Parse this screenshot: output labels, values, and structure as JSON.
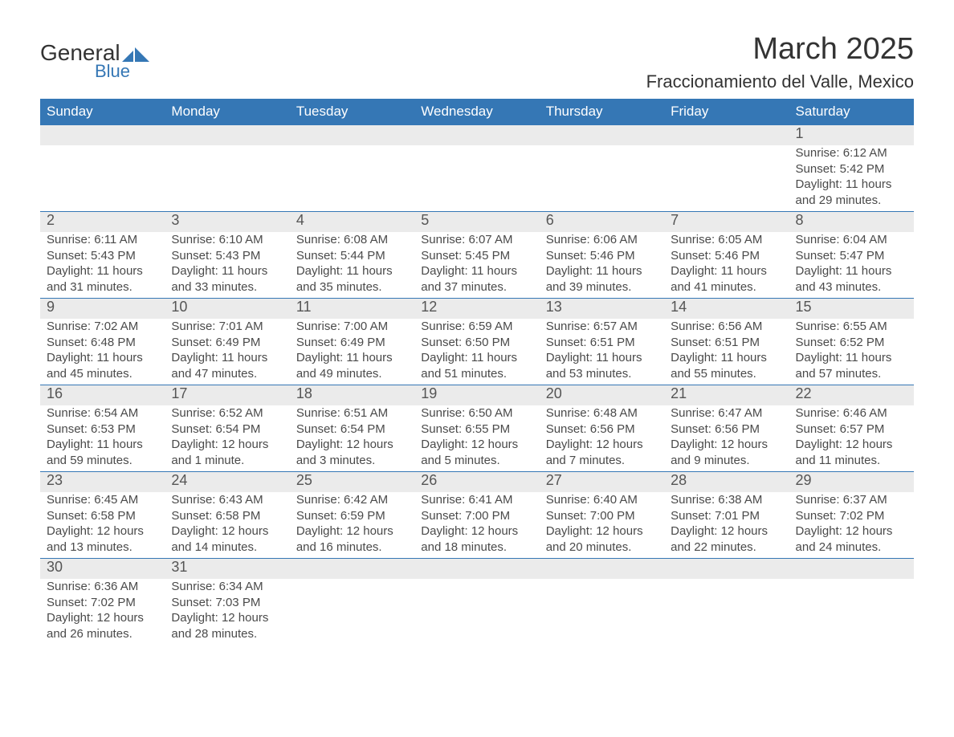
{
  "logo": {
    "general": "General",
    "blue": "Blue"
  },
  "title": "March 2025",
  "location": "Fraccionamiento del Valle, Mexico",
  "colors": {
    "header_bg": "#3577b5",
    "header_text": "#ffffff",
    "daynum_bg": "#ebebeb",
    "rule": "#3577b5",
    "body_text": "#4a4a4a"
  },
  "weekdays": [
    "Sunday",
    "Monday",
    "Tuesday",
    "Wednesday",
    "Thursday",
    "Friday",
    "Saturday"
  ],
  "weeks": [
    [
      null,
      null,
      null,
      null,
      null,
      null,
      {
        "n": "1",
        "sr": "Sunrise: 6:12 AM",
        "ss": "Sunset: 5:42 PM",
        "d1": "Daylight: 11 hours",
        "d2": "and 29 minutes."
      }
    ],
    [
      {
        "n": "2",
        "sr": "Sunrise: 6:11 AM",
        "ss": "Sunset: 5:43 PM",
        "d1": "Daylight: 11 hours",
        "d2": "and 31 minutes."
      },
      {
        "n": "3",
        "sr": "Sunrise: 6:10 AM",
        "ss": "Sunset: 5:43 PM",
        "d1": "Daylight: 11 hours",
        "d2": "and 33 minutes."
      },
      {
        "n": "4",
        "sr": "Sunrise: 6:08 AM",
        "ss": "Sunset: 5:44 PM",
        "d1": "Daylight: 11 hours",
        "d2": "and 35 minutes."
      },
      {
        "n": "5",
        "sr": "Sunrise: 6:07 AM",
        "ss": "Sunset: 5:45 PM",
        "d1": "Daylight: 11 hours",
        "d2": "and 37 minutes."
      },
      {
        "n": "6",
        "sr": "Sunrise: 6:06 AM",
        "ss": "Sunset: 5:46 PM",
        "d1": "Daylight: 11 hours",
        "d2": "and 39 minutes."
      },
      {
        "n": "7",
        "sr": "Sunrise: 6:05 AM",
        "ss": "Sunset: 5:46 PM",
        "d1": "Daylight: 11 hours",
        "d2": "and 41 minutes."
      },
      {
        "n": "8",
        "sr": "Sunrise: 6:04 AM",
        "ss": "Sunset: 5:47 PM",
        "d1": "Daylight: 11 hours",
        "d2": "and 43 minutes."
      }
    ],
    [
      {
        "n": "9",
        "sr": "Sunrise: 7:02 AM",
        "ss": "Sunset: 6:48 PM",
        "d1": "Daylight: 11 hours",
        "d2": "and 45 minutes."
      },
      {
        "n": "10",
        "sr": "Sunrise: 7:01 AM",
        "ss": "Sunset: 6:49 PM",
        "d1": "Daylight: 11 hours",
        "d2": "and 47 minutes."
      },
      {
        "n": "11",
        "sr": "Sunrise: 7:00 AM",
        "ss": "Sunset: 6:49 PM",
        "d1": "Daylight: 11 hours",
        "d2": "and 49 minutes."
      },
      {
        "n": "12",
        "sr": "Sunrise: 6:59 AM",
        "ss": "Sunset: 6:50 PM",
        "d1": "Daylight: 11 hours",
        "d2": "and 51 minutes."
      },
      {
        "n": "13",
        "sr": "Sunrise: 6:57 AM",
        "ss": "Sunset: 6:51 PM",
        "d1": "Daylight: 11 hours",
        "d2": "and 53 minutes."
      },
      {
        "n": "14",
        "sr": "Sunrise: 6:56 AM",
        "ss": "Sunset: 6:51 PM",
        "d1": "Daylight: 11 hours",
        "d2": "and 55 minutes."
      },
      {
        "n": "15",
        "sr": "Sunrise: 6:55 AM",
        "ss": "Sunset: 6:52 PM",
        "d1": "Daylight: 11 hours",
        "d2": "and 57 minutes."
      }
    ],
    [
      {
        "n": "16",
        "sr": "Sunrise: 6:54 AM",
        "ss": "Sunset: 6:53 PM",
        "d1": "Daylight: 11 hours",
        "d2": "and 59 minutes."
      },
      {
        "n": "17",
        "sr": "Sunrise: 6:52 AM",
        "ss": "Sunset: 6:54 PM",
        "d1": "Daylight: 12 hours",
        "d2": "and 1 minute."
      },
      {
        "n": "18",
        "sr": "Sunrise: 6:51 AM",
        "ss": "Sunset: 6:54 PM",
        "d1": "Daylight: 12 hours",
        "d2": "and 3 minutes."
      },
      {
        "n": "19",
        "sr": "Sunrise: 6:50 AM",
        "ss": "Sunset: 6:55 PM",
        "d1": "Daylight: 12 hours",
        "d2": "and 5 minutes."
      },
      {
        "n": "20",
        "sr": "Sunrise: 6:48 AM",
        "ss": "Sunset: 6:56 PM",
        "d1": "Daylight: 12 hours",
        "d2": "and 7 minutes."
      },
      {
        "n": "21",
        "sr": "Sunrise: 6:47 AM",
        "ss": "Sunset: 6:56 PM",
        "d1": "Daylight: 12 hours",
        "d2": "and 9 minutes."
      },
      {
        "n": "22",
        "sr": "Sunrise: 6:46 AM",
        "ss": "Sunset: 6:57 PM",
        "d1": "Daylight: 12 hours",
        "d2": "and 11 minutes."
      }
    ],
    [
      {
        "n": "23",
        "sr": "Sunrise: 6:45 AM",
        "ss": "Sunset: 6:58 PM",
        "d1": "Daylight: 12 hours",
        "d2": "and 13 minutes."
      },
      {
        "n": "24",
        "sr": "Sunrise: 6:43 AM",
        "ss": "Sunset: 6:58 PM",
        "d1": "Daylight: 12 hours",
        "d2": "and 14 minutes."
      },
      {
        "n": "25",
        "sr": "Sunrise: 6:42 AM",
        "ss": "Sunset: 6:59 PM",
        "d1": "Daylight: 12 hours",
        "d2": "and 16 minutes."
      },
      {
        "n": "26",
        "sr": "Sunrise: 6:41 AM",
        "ss": "Sunset: 7:00 PM",
        "d1": "Daylight: 12 hours",
        "d2": "and 18 minutes."
      },
      {
        "n": "27",
        "sr": "Sunrise: 6:40 AM",
        "ss": "Sunset: 7:00 PM",
        "d1": "Daylight: 12 hours",
        "d2": "and 20 minutes."
      },
      {
        "n": "28",
        "sr": "Sunrise: 6:38 AM",
        "ss": "Sunset: 7:01 PM",
        "d1": "Daylight: 12 hours",
        "d2": "and 22 minutes."
      },
      {
        "n": "29",
        "sr": "Sunrise: 6:37 AM",
        "ss": "Sunset: 7:02 PM",
        "d1": "Daylight: 12 hours",
        "d2": "and 24 minutes."
      }
    ],
    [
      {
        "n": "30",
        "sr": "Sunrise: 6:36 AM",
        "ss": "Sunset: 7:02 PM",
        "d1": "Daylight: 12 hours",
        "d2": "and 26 minutes."
      },
      {
        "n": "31",
        "sr": "Sunrise: 6:34 AM",
        "ss": "Sunset: 7:03 PM",
        "d1": "Daylight: 12 hours",
        "d2": "and 28 minutes."
      },
      null,
      null,
      null,
      null,
      null
    ]
  ]
}
